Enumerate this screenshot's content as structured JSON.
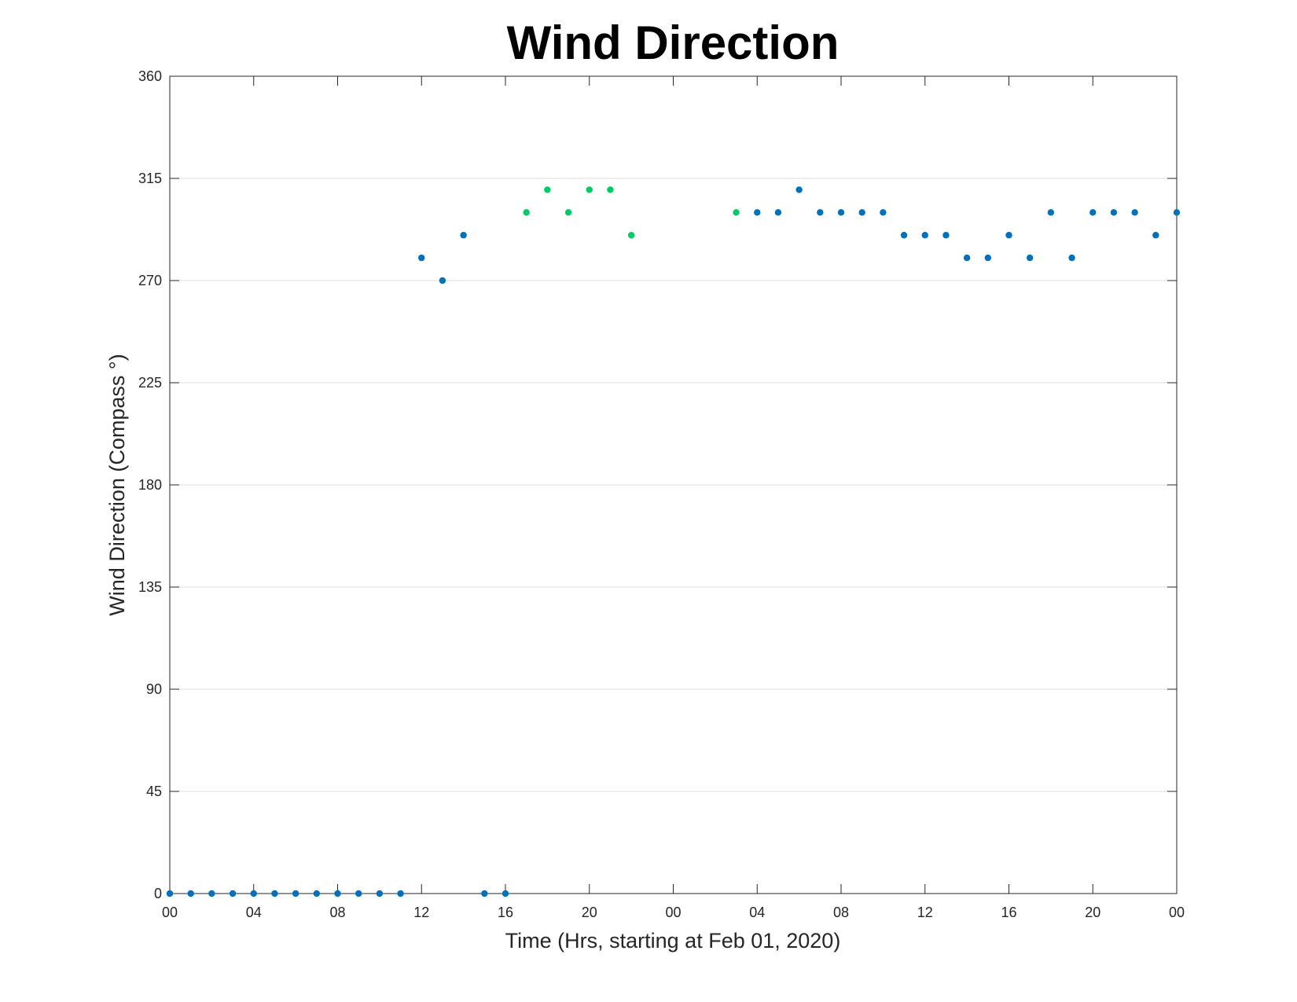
{
  "chart_data": {
    "type": "scatter",
    "title": "Wind Direction",
    "xlabel": "Time (Hrs, starting at Feb 01, 2020)",
    "ylabel": "Wind Direction (Compass °)",
    "x_unit": "hours",
    "xlim": [
      0,
      48
    ],
    "ylim": [
      0,
      360
    ],
    "x_ticks": [
      0,
      4,
      8,
      12,
      16,
      20,
      24,
      28,
      32,
      36,
      40,
      44,
      48
    ],
    "x_tick_labels": [
      "00",
      "04",
      "08",
      "12",
      "16",
      "20",
      "00",
      "04",
      "08",
      "12",
      "16",
      "20",
      "00"
    ],
    "y_ticks": [
      0,
      45,
      90,
      135,
      180,
      225,
      270,
      315,
      360
    ],
    "y_tick_labels": [
      "0",
      "45",
      "90",
      "135",
      "180",
      "225",
      "270",
      "315",
      "360"
    ],
    "grid": "horizontal",
    "series": [
      {
        "color": "#0072BD",
        "x": [
          0,
          1,
          2,
          3,
          4,
          5,
          6,
          7,
          8,
          9,
          10,
          11,
          12,
          13,
          14,
          15,
          16,
          28,
          29,
          30,
          31,
          32,
          33,
          34,
          35,
          36,
          37,
          38,
          39,
          40,
          41,
          42,
          43,
          44,
          45,
          46,
          47,
          48
        ],
        "y": [
          0,
          0,
          0,
          0,
          0,
          0,
          0,
          0,
          0,
          0,
          0,
          0,
          280,
          270,
          290,
          0,
          0,
          300,
          300,
          310,
          300,
          300,
          300,
          300,
          290,
          290,
          290,
          280,
          280,
          290,
          280,
          300,
          280,
          300,
          300,
          300,
          290,
          300
        ]
      },
      {
        "color": "#00CC66",
        "x": [
          17,
          18,
          19,
          20,
          21,
          22,
          27
        ],
        "y": [
          300,
          310,
          300,
          310,
          310,
          290,
          300
        ]
      }
    ]
  }
}
